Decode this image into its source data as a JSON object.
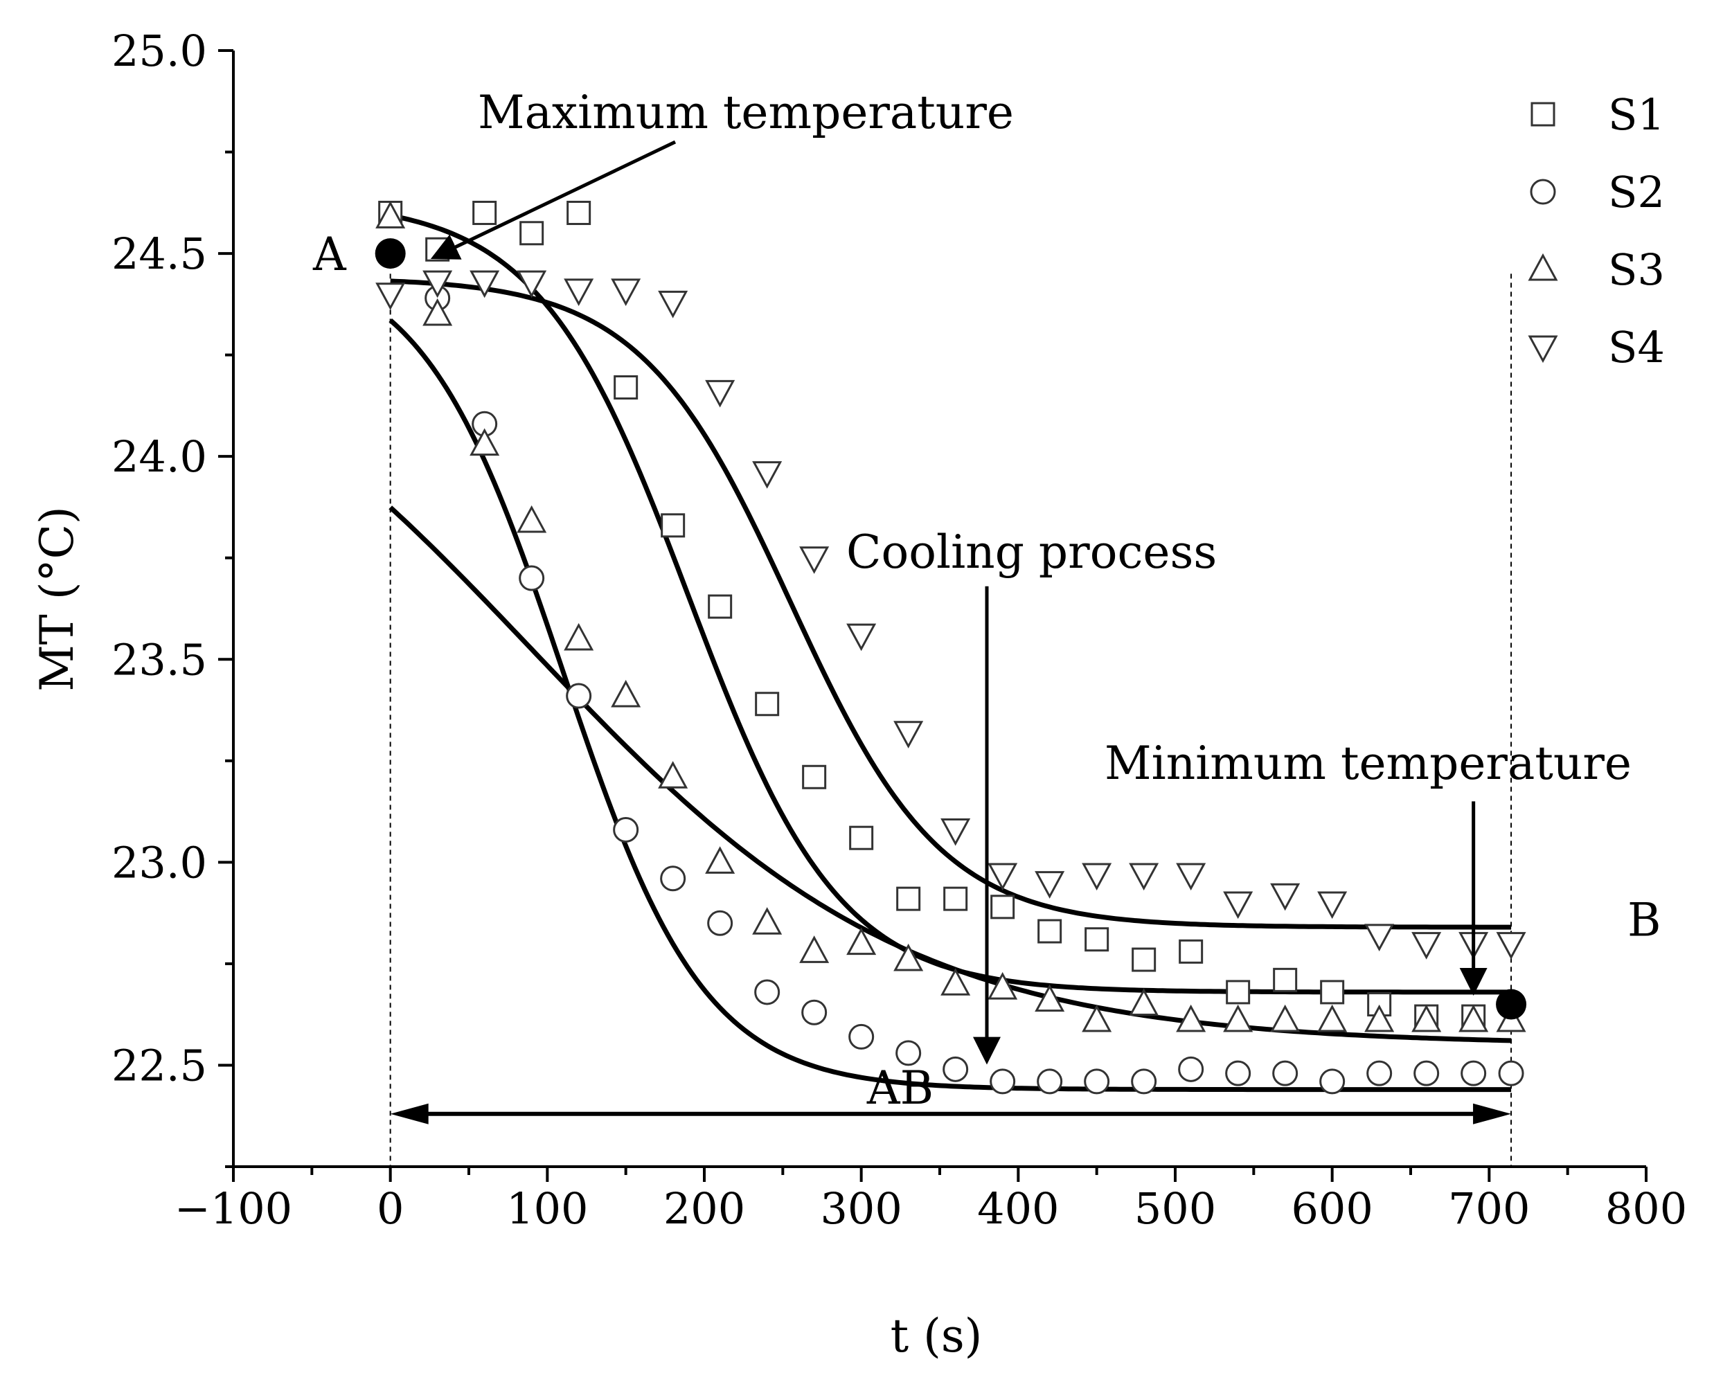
{
  "chart_data": {
    "type": "scatter",
    "xlabel": "t (s)",
    "ylabel": "MT (°C)",
    "xlim": [
      -100,
      800
    ],
    "ylim": [
      22.25,
      25.0
    ],
    "x_ticks": [
      -100,
      0,
      100,
      200,
      300,
      400,
      500,
      600,
      700,
      800
    ],
    "x_tick_labels": [
      "−100",
      "0",
      "100",
      "200",
      "300",
      "400",
      "500",
      "600",
      "700",
      "800"
    ],
    "y_ticks": [
      22.5,
      23.0,
      23.5,
      24.0,
      24.5,
      25.0
    ],
    "y_tick_labels": [
      "22.5",
      "23.0",
      "23.5",
      "24.0",
      "24.5",
      "25.0"
    ],
    "legend_position": "top-right",
    "series": [
      {
        "name": "S1",
        "marker": "square",
        "x": [
          0,
          30,
          60,
          90,
          120,
          150,
          180,
          210,
          240,
          270,
          300,
          330,
          360,
          390,
          420,
          450,
          480,
          510,
          540,
          570,
          600,
          630,
          660,
          690
        ],
        "y": [
          24.6,
          24.51,
          24.6,
          24.55,
          24.6,
          24.17,
          23.83,
          23.63,
          23.39,
          23.21,
          23.06,
          22.91,
          22.91,
          22.89,
          22.83,
          22.81,
          22.76,
          22.78,
          22.68,
          22.71,
          22.68,
          22.65,
          22.62,
          22.62
        ],
        "fit": {
          "top": 24.63,
          "bottom": 22.68,
          "mid": 190,
          "width": 48
        }
      },
      {
        "name": "S2",
        "marker": "circle",
        "x": [
          0,
          30,
          60,
          90,
          120,
          150,
          180,
          210,
          240,
          270,
          300,
          330,
          360,
          390,
          420,
          450,
          480,
          510,
          540,
          570,
          600,
          630,
          660,
          690,
          714
        ],
        "y": [
          24.5,
          24.39,
          24.08,
          23.7,
          23.41,
          23.08,
          22.96,
          22.85,
          22.68,
          22.63,
          22.57,
          22.53,
          22.49,
          22.46,
          22.46,
          22.46,
          22.46,
          22.49,
          22.48,
          22.48,
          22.46,
          22.48,
          22.48,
          22.48,
          22.48
        ],
        "fit": {
          "top": 24.5,
          "bottom": 22.44,
          "mid": 110,
          "width": 45
        }
      },
      {
        "name": "S3",
        "marker": "triangle-up",
        "x": [
          0,
          30,
          60,
          90,
          120,
          150,
          180,
          210,
          240,
          270,
          300,
          330,
          360,
          390,
          420,
          450,
          480,
          510,
          540,
          570,
          600,
          630,
          660,
          690,
          714
        ],
        "y": [
          24.59,
          24.35,
          24.03,
          23.84,
          23.55,
          23.41,
          23.21,
          23.0,
          22.85,
          22.78,
          22.8,
          22.76,
          22.7,
          22.69,
          22.66,
          22.61,
          22.65,
          22.61,
          22.61,
          22.61,
          22.61,
          22.61,
          22.61,
          22.61,
          22.61
        ],
        "fit": {
          "top": 24.5,
          "bottom": 22.55,
          "mid": 90,
          "width": 120
        }
      },
      {
        "name": "S4",
        "marker": "triangle-down",
        "x": [
          0,
          30,
          60,
          90,
          120,
          150,
          180,
          210,
          240,
          270,
          300,
          330,
          360,
          390,
          420,
          450,
          480,
          510,
          540,
          570,
          600,
          630,
          660,
          690,
          714
        ],
        "y": [
          24.4,
          24.43,
          24.43,
          24.43,
          24.41,
          24.41,
          24.38,
          24.16,
          23.96,
          23.75,
          23.56,
          23.32,
          23.08,
          22.97,
          22.95,
          22.97,
          22.97,
          22.97,
          22.9,
          22.92,
          22.9,
          22.82,
          22.8,
          22.8,
          22.8
        ],
        "fit": {
          "top": 24.44,
          "bottom": 22.84,
          "mid": 255,
          "width": 48
        }
      }
    ],
    "special_points": [
      {
        "label": "A",
        "x": 0,
        "y": 24.5
      },
      {
        "label": "B",
        "x": 714,
        "y": 22.65
      }
    ],
    "annotations": {
      "max": {
        "text": "Maximum temperature",
        "target_x": 25,
        "target_y": 24.48
      },
      "cooling": {
        "text": "Cooling process",
        "arrow_x": 380,
        "from_y": 23.68,
        "to_y": 22.51
      },
      "min": {
        "text": "Minimum temperature",
        "arrow_x": 690,
        "from_y": 23.15,
        "to_y": 22.68
      },
      "ab": {
        "text": "AB",
        "x_start": 0,
        "x_end": 714,
        "y": 22.38
      }
    },
    "guide_lines_x": [
      0,
      714
    ]
  }
}
